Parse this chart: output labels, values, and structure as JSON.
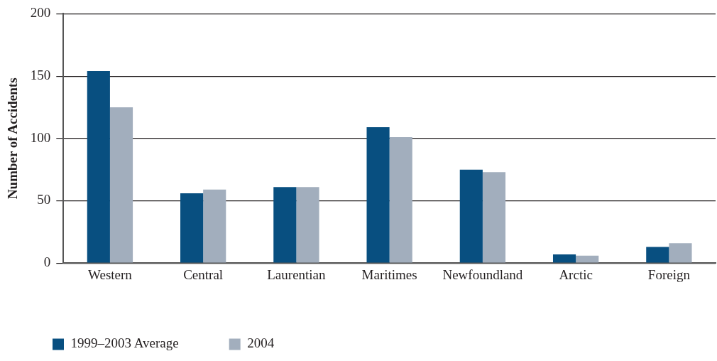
{
  "chart_data": {
    "type": "bar",
    "ylabel": "Number of Accidents",
    "categories": [
      "Western",
      "Central",
      "Laurentian",
      "Maritimes",
      "Newfoundland",
      "Arctic",
      "Foreign"
    ],
    "series": [
      {
        "name": "1999–2003 Average",
        "color": "#084f80",
        "values": [
          154,
          56,
          61,
          109,
          75,
          7,
          13
        ]
      },
      {
        "name": "2004",
        "color": "#a2aebd",
        "values": [
          125,
          59,
          61,
          101,
          73,
          6,
          16
        ]
      }
    ],
    "ylim": [
      0,
      200
    ],
    "yticks": [
      0,
      50,
      100,
      150,
      200
    ],
    "grid": "y",
    "legend": "bottom left"
  }
}
